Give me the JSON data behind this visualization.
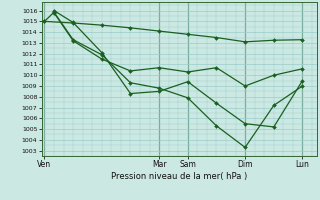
{
  "background_color": "#cce8e2",
  "grid_color": "#99cccc",
  "line_color": "#1a6020",
  "xlabel": "Pression niveau de la mer( hPa )",
  "ylim": [
    1002.5,
    1016.8
  ],
  "yticks": [
    1003,
    1004,
    1005,
    1006,
    1007,
    1008,
    1009,
    1010,
    1011,
    1012,
    1013,
    1014,
    1015,
    1016
  ],
  "x_tick_labels": [
    "Ven",
    "Mar",
    "Sam",
    "Dim",
    "Lun"
  ],
  "x_tick_positions": [
    0,
    12,
    15,
    21,
    27
  ],
  "xlim": [
    -0.3,
    28.5
  ],
  "lines": [
    {
      "x": [
        0,
        3,
        6,
        9,
        12,
        15,
        18,
        21,
        24,
        27
      ],
      "y": [
        1015.0,
        1014.85,
        1014.65,
        1014.4,
        1014.1,
        1013.8,
        1013.5,
        1013.1,
        1013.25,
        1013.3
      ]
    },
    {
      "x": [
        0,
        1,
        3,
        6,
        9,
        12,
        15,
        18,
        21,
        24,
        27
      ],
      "y": [
        1015.0,
        1015.85,
        1013.3,
        1011.9,
        1009.3,
        1008.8,
        1007.9,
        1005.3,
        1003.3,
        1007.2,
        1009.0
      ]
    },
    {
      "x": [
        1,
        3,
        6,
        9,
        12,
        15,
        18,
        21,
        24,
        27
      ],
      "y": [
        1016.0,
        1014.9,
        1012.1,
        1008.3,
        1008.5,
        1009.4,
        1007.4,
        1005.5,
        1005.2,
        1009.5
      ]
    },
    {
      "x": [
        1,
        3,
        6,
        9,
        12,
        15,
        18,
        21,
        24,
        27
      ],
      "y": [
        1015.8,
        1013.2,
        1011.5,
        1010.4,
        1010.7,
        1010.3,
        1010.7,
        1009.0,
        1010.0,
        1010.6
      ]
    }
  ]
}
